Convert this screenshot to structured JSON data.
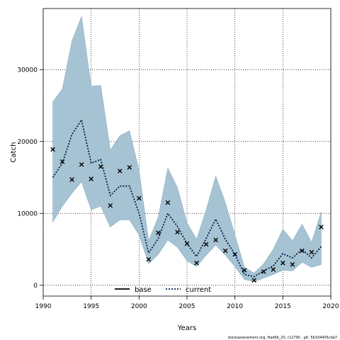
{
  "chart_data": {
    "type": "line",
    "xlabel": "Years",
    "ylabel": "Catch",
    "xlim": [
      1990,
      2020
    ],
    "ylim": [
      -1500,
      38500
    ],
    "x_ticks": [
      1990,
      1995,
      2000,
      2005,
      2010,
      2015,
      2020
    ],
    "y_ticks": [
      0,
      10000,
      20000,
      30000
    ],
    "grid": true,
    "legend_position": "bottom-center",
    "colors": {
      "band": "#a6c3d3",
      "band_stroke": "#8ab0c4",
      "current_line": "#00204a",
      "observed": "#000000"
    },
    "series": [
      {
        "name": "base",
        "style": "solid line",
        "x": [],
        "y": []
      },
      {
        "name": "current",
        "style": "dotted line",
        "x": [
          1991,
          1992,
          1993,
          1994,
          1995,
          1996,
          1997,
          1998,
          1999,
          2000,
          2001,
          2002,
          2003,
          2004,
          2005,
          2006,
          2007,
          2008,
          2009,
          2010,
          2011,
          2012,
          2013,
          2014,
          2015,
          2016,
          2017,
          2018,
          2019
        ],
        "y": [
          15000,
          17000,
          21000,
          23000,
          17000,
          17500,
          12500,
          13800,
          13800,
          10000,
          4500,
          6500,
          10000,
          8200,
          5800,
          4000,
          6500,
          9200,
          6400,
          4300,
          1500,
          1200,
          2000,
          2700,
          4400,
          3800,
          5000,
          3800,
          5400
        ]
      }
    ],
    "band": {
      "x": [
        1991,
        1992,
        1993,
        1994,
        1995,
        1996,
        1997,
        1998,
        1999,
        2000,
        2001,
        2002,
        2003,
        2004,
        2005,
        2006,
        2007,
        2008,
        2009,
        2010,
        2011,
        2012,
        2013,
        2014,
        2015,
        2016,
        2017,
        2018,
        2019
      ],
      "upper": [
        25500,
        27300,
        34000,
        37400,
        27700,
        27800,
        18800,
        20800,
        21500,
        16000,
        6200,
        9500,
        16300,
        13600,
        8700,
        6400,
        10500,
        15200,
        11500,
        7000,
        2500,
        1700,
        3000,
        5000,
        7800,
        6200,
        8500,
        6000,
        10200
      ],
      "lower": [
        8800,
        11000,
        12800,
        14400,
        10500,
        11000,
        8100,
        9100,
        9100,
        7000,
        3000,
        4300,
        6300,
        5300,
        3400,
        2600,
        4200,
        5600,
        4200,
        2600,
        800,
        500,
        1000,
        1500,
        2100,
        2000,
        3200,
        2500,
        2900
      ]
    },
    "observed": {
      "x": [
        1991,
        1992,
        1993,
        1994,
        1995,
        1996,
        1997,
        1998,
        1999,
        2000,
        2001,
        2002,
        2003,
        2004,
        2005,
        2006,
        2007,
        2008,
        2009,
        2010,
        2011,
        2012,
        2013,
        2014,
        2015,
        2016,
        2017,
        2018,
        2019
      ],
      "y": [
        18900,
        17200,
        14700,
        16800,
        14800,
        16500,
        11100,
        15900,
        16400,
        12100,
        3600,
        7300,
        11500,
        7400,
        5800,
        3100,
        5700,
        6300,
        4800,
        4300,
        2100,
        700,
        1900,
        2200,
        3100,
        2900,
        4800,
        4600,
        8100
      ]
    },
    "footer": "stockassessment.org, Had6b_20, r12790 , git: 5b334405cda7"
  }
}
